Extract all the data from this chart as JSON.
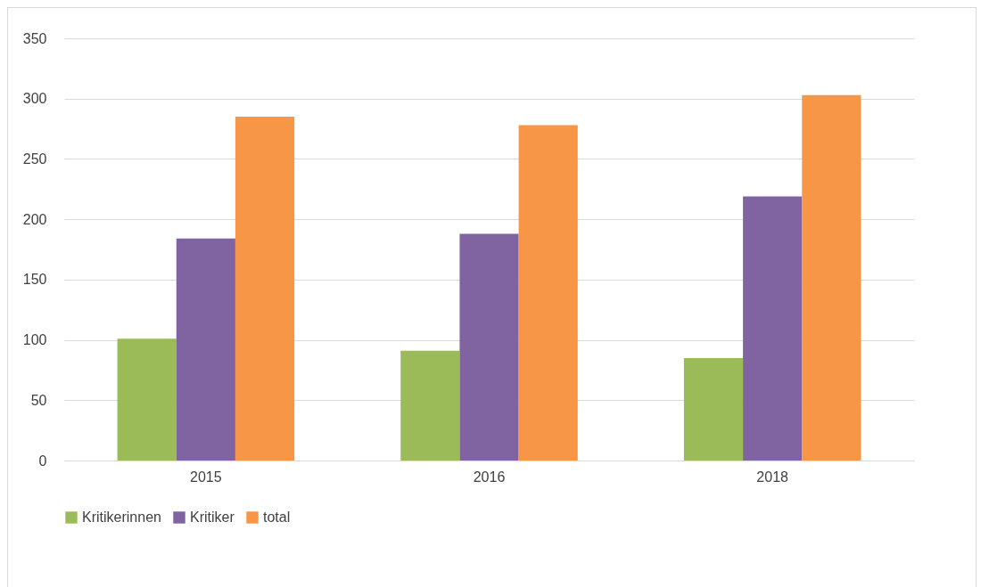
{
  "chart_data": {
    "type": "bar",
    "categories": [
      "2015",
      "2016",
      "2018"
    ],
    "series": [
      {
        "name": "Kritikerinnen",
        "color": "#9bbb59",
        "values": [
          101,
          91,
          85
        ]
      },
      {
        "name": "Kritiker",
        "color": "#8064a2",
        "values": [
          184,
          188,
          219
        ]
      },
      {
        "name": "total",
        "color": "#f79646",
        "values": [
          285,
          278,
          303
        ]
      }
    ],
    "ylim": [
      0,
      350
    ],
    "yticks": [
      0,
      50,
      100,
      150,
      200,
      250,
      300,
      350
    ],
    "grid": "y",
    "legend": "bottom"
  }
}
